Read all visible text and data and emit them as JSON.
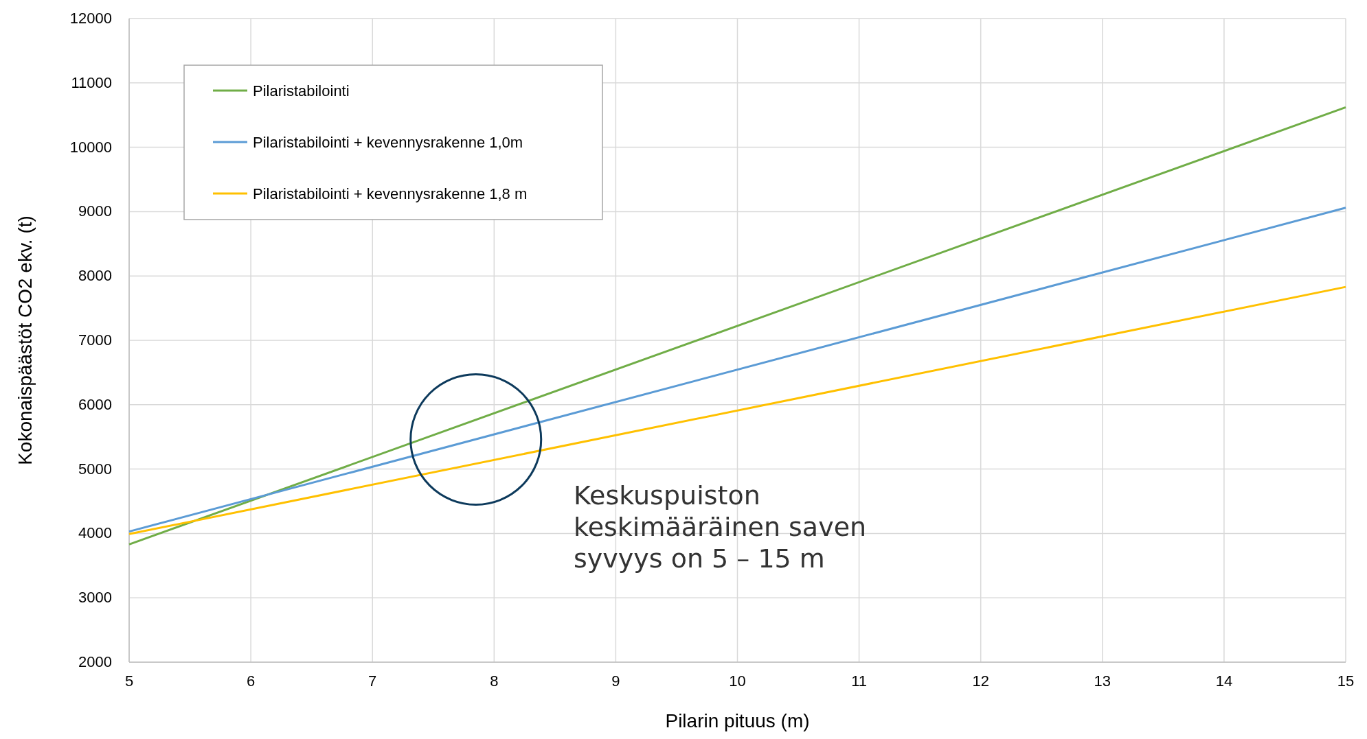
{
  "chart_data": {
    "type": "line",
    "xlabel": "Pilarin pituus (m)",
    "ylabel": "Kokonaispäästöt CO2 ekv. (t)",
    "x": [
      5,
      15
    ],
    "series": [
      {
        "name": "Pilaristabilointi",
        "color": "#70ad47",
        "values": [
          3830,
          10620
        ]
      },
      {
        "name": "Pilaristabilointi + kevennysrakenne 1,0m",
        "color": "#5b9bd5",
        "values": [
          4030,
          9060
        ]
      },
      {
        "name": "Pilaristabilointi + kevennysrakenne 1,8 m",
        "color": "#ffc000",
        "values": [
          3990,
          7830
        ]
      }
    ],
    "xlim": [
      5,
      15
    ],
    "xticks": [
      5,
      6,
      7,
      8,
      9,
      10,
      11,
      12,
      13,
      14,
      15
    ],
    "ylim": [
      2000,
      12000
    ],
    "yticks": [
      2000,
      3000,
      4000,
      5000,
      6000,
      7000,
      8000,
      9000,
      10000,
      11000,
      12000
    ],
    "grid": true,
    "legend": "top left",
    "marker": "none",
    "line_style": "solid",
    "annotations": [
      "Keskuspuiston keskimääräinen saven syvyys on 5 – 15 m"
    ]
  }
}
